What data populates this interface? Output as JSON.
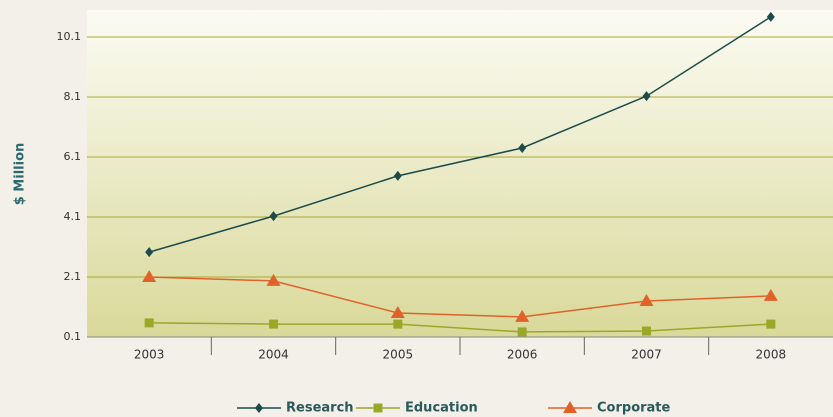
{
  "chart_data": {
    "type": "line",
    "y_label": "$ Million",
    "categories": [
      "2003",
      "2004",
      "2005",
      "2006",
      "2007",
      "2008"
    ],
    "series": [
      {
        "name": "Research",
        "color": "#1d4b4b",
        "marker": "diamond",
        "values": [
          2.93,
          4.13,
          5.47,
          6.4,
          8.13,
          10.77
        ]
      },
      {
        "name": "Education",
        "color": "#9aa82a",
        "marker": "square",
        "values": [
          0.57,
          0.53,
          0.53,
          0.27,
          0.3,
          0.53
        ]
      },
      {
        "name": "Corporate",
        "color": "#e0622a",
        "marker": "triangle",
        "values": [
          2.1,
          1.97,
          0.9,
          0.77,
          1.3,
          1.47
        ]
      }
    ],
    "ylim": [
      0.1,
      11.0
    ],
    "yticks": [
      0.1,
      2.1,
      4.1,
      6.1,
      8.1,
      10.1
    ],
    "grid": true
  }
}
